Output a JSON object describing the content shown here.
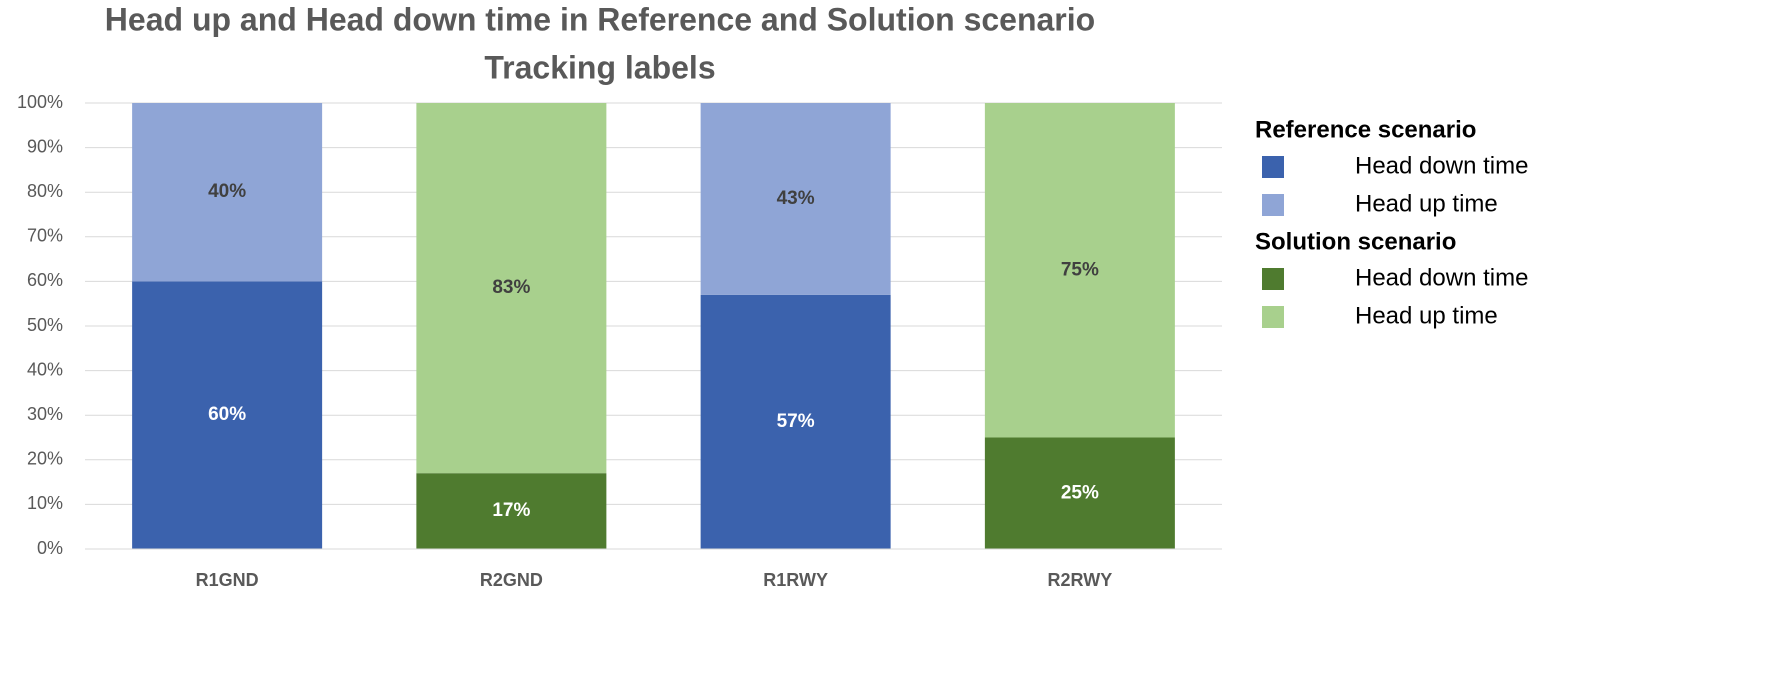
{
  "chart_data": {
    "type": "stacked_bar",
    "title": "Head up and Head down time in Reference and Solution scenario",
    "subtitle": "Tracking labels",
    "categories": [
      "R1GND",
      "R2GND",
      "R1RWY",
      "R2RWY"
    ],
    "ylim": [
      0,
      100
    ],
    "yticks": [
      {
        "value": 0,
        "label": "0%"
      },
      {
        "value": 10,
        "label": "10%"
      },
      {
        "value": 20,
        "label": "20%"
      },
      {
        "value": 30,
        "label": "30%"
      },
      {
        "value": 40,
        "label": "40%"
      },
      {
        "value": 50,
        "label": "50%"
      },
      {
        "value": 60,
        "label": "60%"
      },
      {
        "value": 70,
        "label": "70%"
      },
      {
        "value": 80,
        "label": "80%"
      },
      {
        "value": 90,
        "label": "90%"
      },
      {
        "value": 100,
        "label": "100%"
      }
    ],
    "grid": true,
    "legend": "right",
    "groups": [
      {
        "name": "Reference scenario",
        "series": [
          {
            "name": "Head down time",
            "color": "#3b62ad",
            "label_color": "#ffffff",
            "values": [
              60,
              null,
              57,
              null
            ],
            "value_labels": [
              "60%",
              null,
              "57%",
              null
            ]
          },
          {
            "name": "Head up time",
            "color": "#8fa5d6",
            "label_color": "#404040",
            "values": [
              40,
              null,
              43,
              null
            ],
            "value_labels": [
              "40%",
              null,
              "43%",
              null
            ]
          }
        ]
      },
      {
        "name": "Solution scenario",
        "series": [
          {
            "name": "Head down time",
            "color": "#4f7b2f",
            "label_color": "#ffffff",
            "values": [
              null,
              17,
              null,
              25
            ],
            "value_labels": [
              null,
              "17%",
              null,
              "25%"
            ]
          },
          {
            "name": "Head up time",
            "color": "#a8d08d",
            "label_color": "#404040",
            "values": [
              null,
              83,
              null,
              75
            ],
            "value_labels": [
              null,
              "83%",
              null,
              "75%"
            ]
          }
        ]
      }
    ]
  }
}
